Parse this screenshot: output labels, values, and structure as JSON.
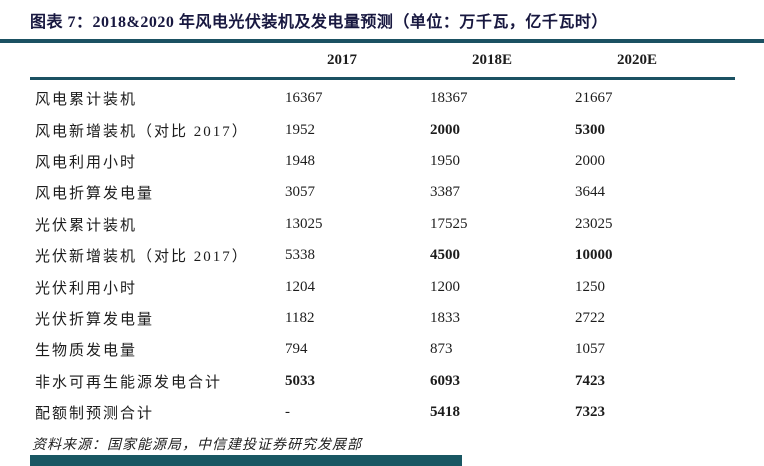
{
  "title": "图表 7：2018&2020 年风电光伏装机及发电量预测（单位：万千瓦，亿千瓦时）",
  "table": {
    "column_headers": [
      "2017",
      "2018E",
      "2020E"
    ],
    "rows": [
      {
        "label": "风电累计装机",
        "values": [
          "16367",
          "18367",
          "21667"
        ],
        "bold": [
          false,
          false,
          false
        ]
      },
      {
        "label": "风电新增装机（对比 2017）",
        "values": [
          "1952",
          "2000",
          "5300"
        ],
        "bold": [
          false,
          true,
          true
        ]
      },
      {
        "label": "风电利用小时",
        "values": [
          "1948",
          "1950",
          "2000"
        ],
        "bold": [
          false,
          false,
          false
        ]
      },
      {
        "label": "风电折算发电量",
        "values": [
          "3057",
          "3387",
          "3644"
        ],
        "bold": [
          false,
          false,
          false
        ]
      },
      {
        "label": "光伏累计装机",
        "values": [
          "13025",
          "17525",
          "23025"
        ],
        "bold": [
          false,
          false,
          false
        ]
      },
      {
        "label": "光伏新增装机（对比 2017）",
        "values": [
          "5338",
          "4500",
          "10000"
        ],
        "bold": [
          false,
          true,
          true
        ]
      },
      {
        "label": "光伏利用小时",
        "values": [
          "1204",
          "1200",
          "1250"
        ],
        "bold": [
          false,
          false,
          false
        ]
      },
      {
        "label": "光伏折算发电量",
        "values": [
          "1182",
          "1833",
          "2722"
        ],
        "bold": [
          false,
          false,
          false
        ]
      },
      {
        "label": "生物质发电量",
        "values": [
          "794",
          "873",
          "1057"
        ],
        "bold": [
          false,
          false,
          false
        ]
      },
      {
        "label": "非水可再生能源发电合计",
        "values": [
          "5033",
          "6093",
          "7423"
        ],
        "bold": [
          true,
          true,
          true
        ]
      },
      {
        "label": "配额制预测合计",
        "values": [
          "-",
          "5418",
          "7323"
        ],
        "bold": [
          false,
          true,
          true
        ]
      }
    ]
  },
  "footer": {
    "source": "资料来源：国家能源局，中信建投证券研究发展部"
  },
  "colors": {
    "accent_rule": "#1b5162",
    "title_text": "#181840",
    "bottom_bar": "#195763",
    "body_text": "#1c1c1c"
  }
}
